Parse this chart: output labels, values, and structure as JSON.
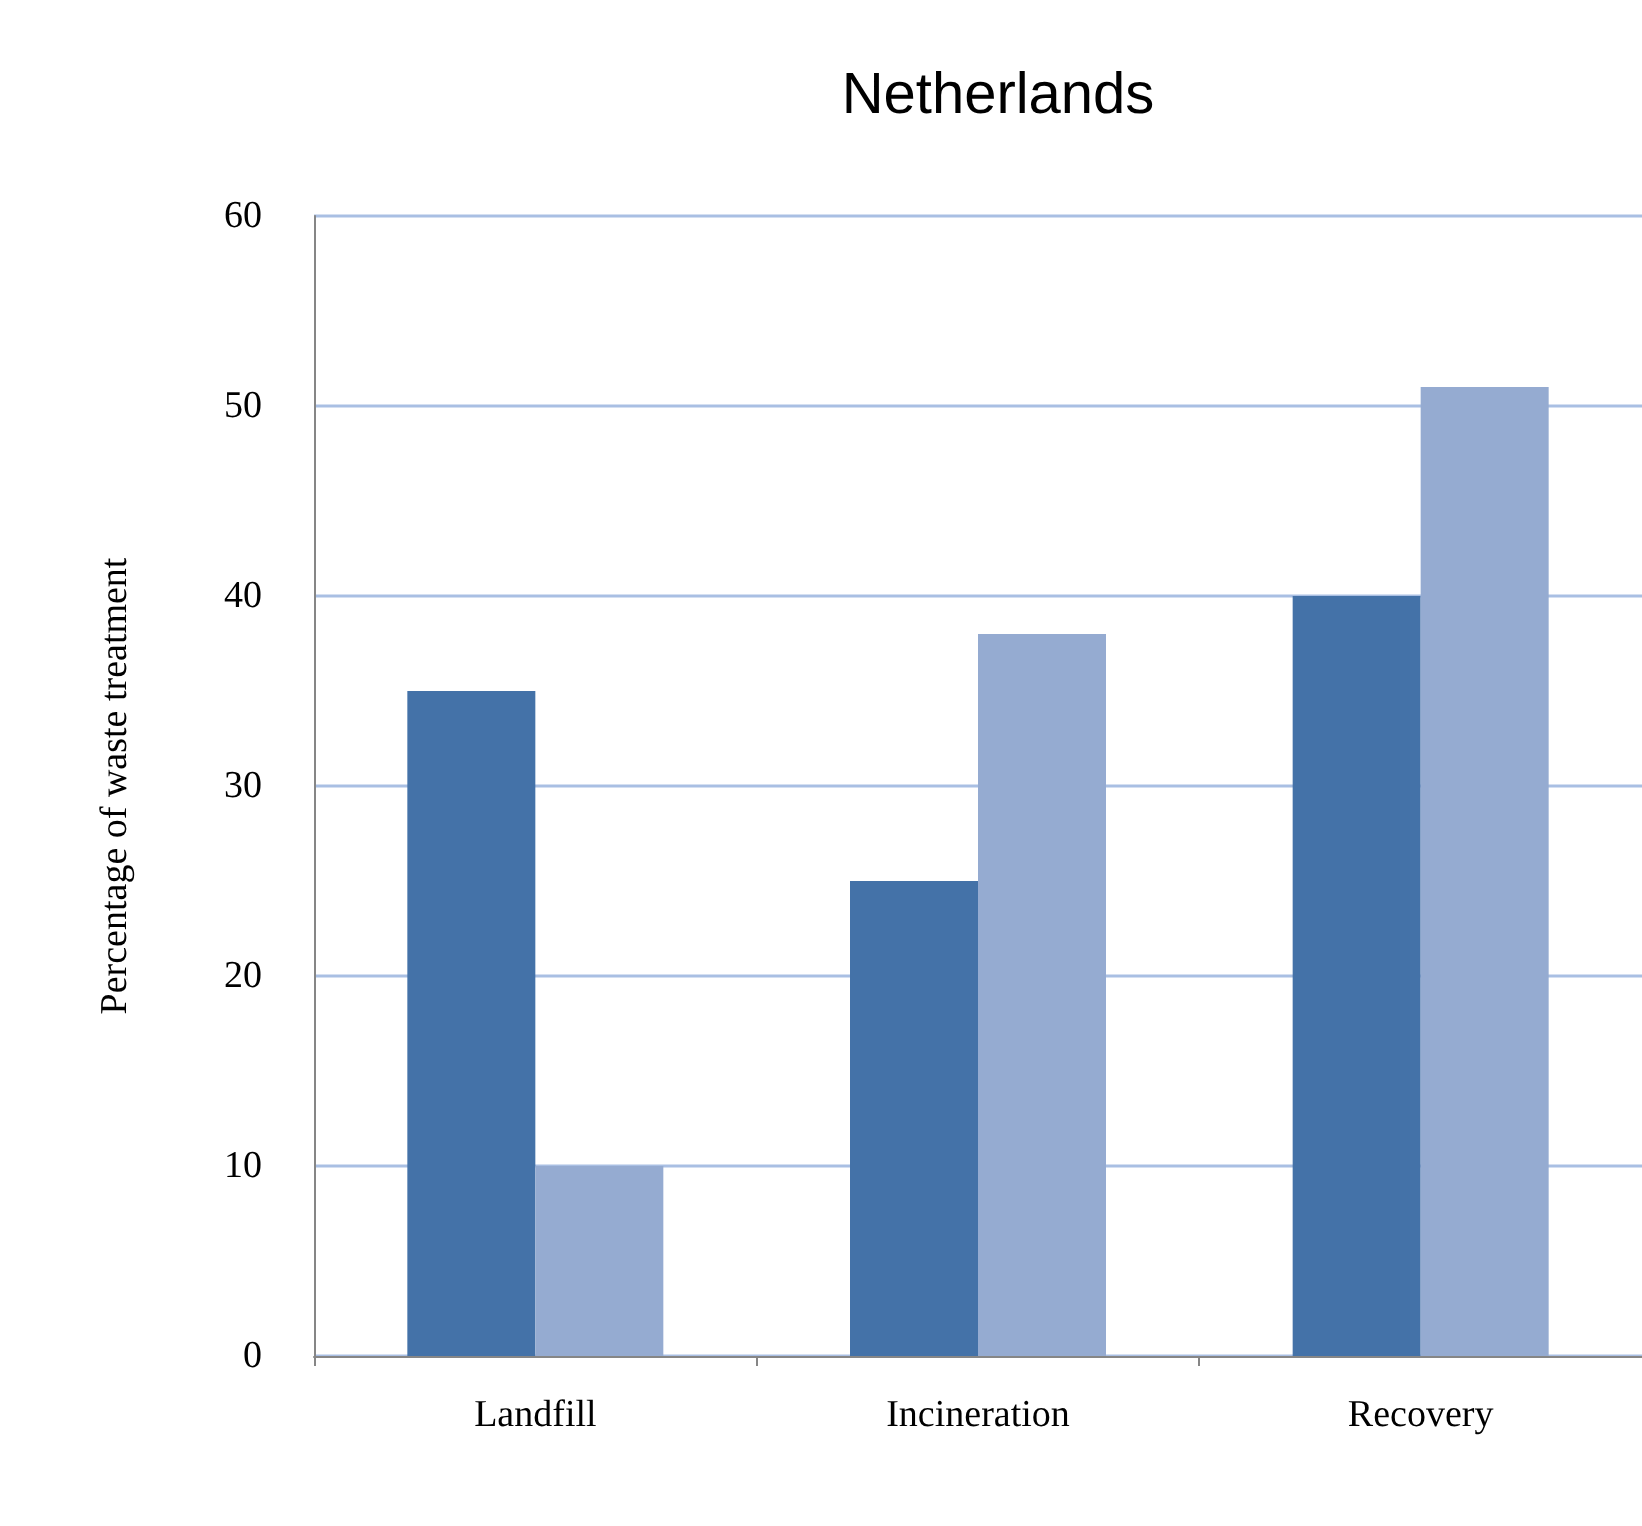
{
  "chart_data": {
    "type": "bar",
    "title": "Netherlands",
    "ylabel": "Percentage of waste treatment",
    "categories": [
      "Landfill",
      "Incineration",
      "Recovery"
    ],
    "series": [
      {
        "color": "#4472a8",
        "values": [
          35,
          25,
          40
        ]
      },
      {
        "color": "#95abd1",
        "values": [
          10,
          38,
          51
        ]
      }
    ],
    "ylim": [
      0,
      60
    ],
    "yticks": [
      0,
      10,
      20,
      30,
      40,
      50,
      60
    ],
    "grid": "y"
  }
}
